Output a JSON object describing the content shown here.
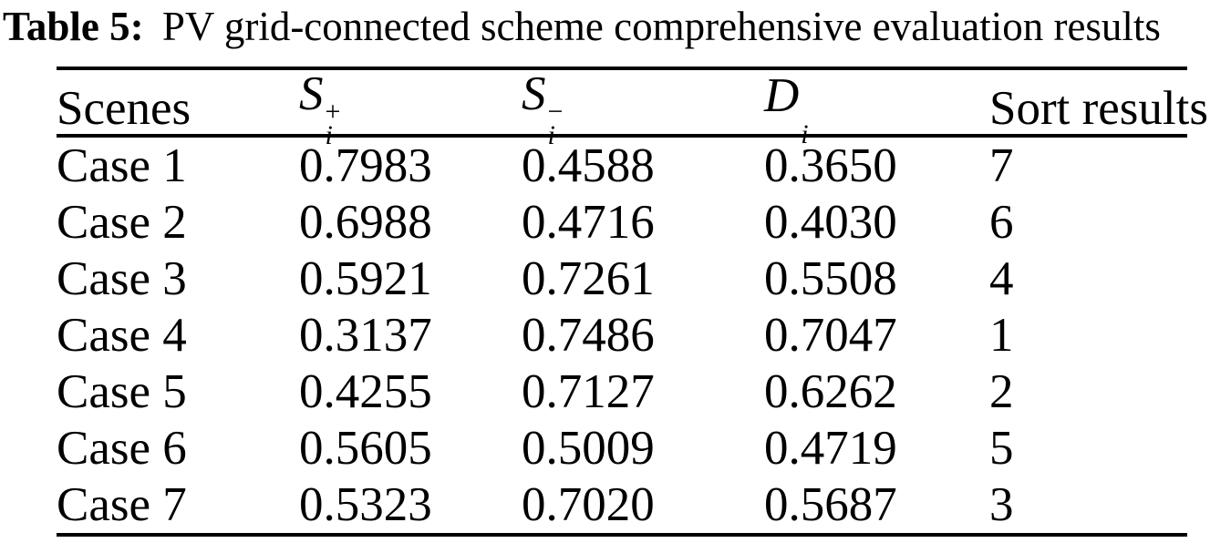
{
  "page": {
    "background": "#ffffff",
    "text_color": "#000000"
  },
  "caption": {
    "label": "Table 5:",
    "text": "PV grid-connected scheme comprehensive evaluation results"
  },
  "table": {
    "columns": [
      {
        "key": "scenes",
        "label": "Scenes"
      },
      {
        "key": "s_plus",
        "base": "S",
        "sup": "+",
        "sub": "i"
      },
      {
        "key": "s_minus",
        "base": "S",
        "sup": "−",
        "sub": "i"
      },
      {
        "key": "d",
        "base": "D",
        "sup": "",
        "sub": "i"
      },
      {
        "key": "sort_results",
        "label": "Sort results"
      }
    ],
    "rows": [
      [
        "Case 1",
        "0.7983",
        "0.4588",
        "0.3650",
        "7"
      ],
      [
        "Case 2",
        "0.6988",
        "0.4716",
        "0.4030",
        "6"
      ],
      [
        "Case 3",
        "0.5921",
        "0.7261",
        "0.5508",
        "4"
      ],
      [
        "Case 4",
        "0.3137",
        "0.7486",
        "0.7047",
        "1"
      ],
      [
        "Case 5",
        "0.4255",
        "0.7127",
        "0.6262",
        "2"
      ],
      [
        "Case 6",
        "0.5605",
        "0.5009",
        "0.4719",
        "5"
      ],
      [
        "Case 7",
        "0.5323",
        "0.7020",
        "0.5687",
        "3"
      ]
    ]
  }
}
